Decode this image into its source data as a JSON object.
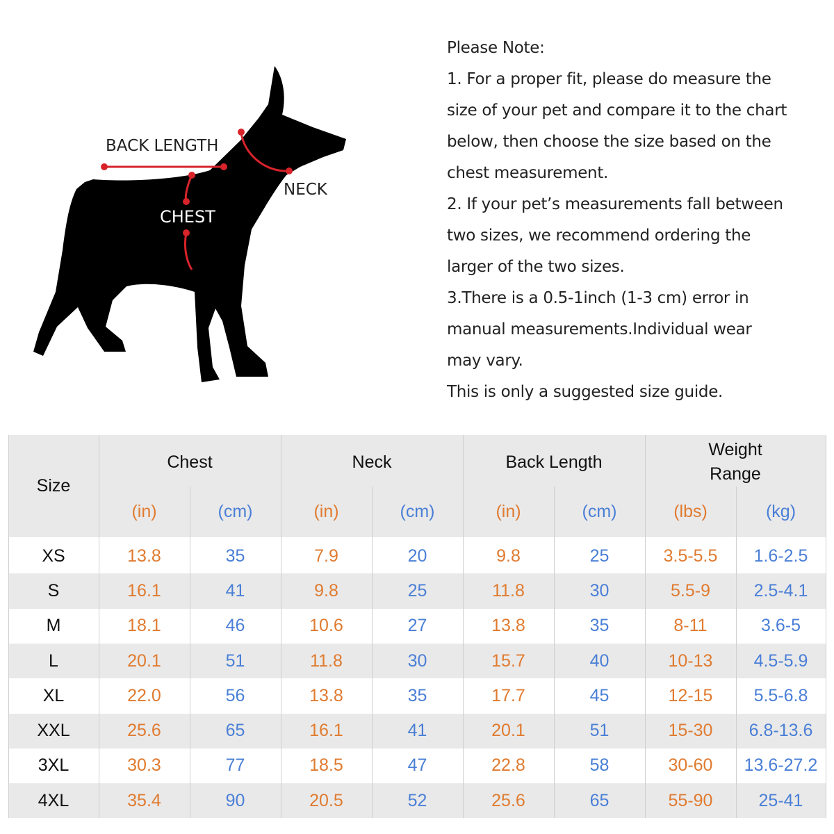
{
  "diagram": {
    "labels": {
      "back_length": "BACK LENGTH",
      "neck": "NECK",
      "chest": "CHEST"
    }
  },
  "note": {
    "title": "Please Note:",
    "lines": [
      "1. For a proper fit, please do measure the",
      "size of your pet and compare it to the chart",
      "below, then choose the size based on the",
      "chest measurement.",
      "2. If your pet’s measurements fall between",
      "two sizes, we recommend ordering the",
      "larger of the two sizes.",
      "3.There is a 0.5-1inch (1-3 cm) error in",
      "manual measurements.Individual wear",
      "may vary.",
      "This is only a suggested size guide."
    ]
  },
  "table": {
    "size_header": "Size",
    "groups": [
      "Chest",
      "Neck",
      "Back Length",
      "Weight Range"
    ],
    "units": [
      "(in)",
      "(cm)",
      "(in)",
      "(cm)",
      "(in)",
      "(cm)",
      "(lbs)",
      "(kg)"
    ],
    "rows": [
      [
        "XS",
        "13.8",
        "35",
        "7.9",
        "20",
        "9.8",
        "25",
        "3.5-5.5",
        "1.6-2.5"
      ],
      [
        "S",
        "16.1",
        "41",
        "9.8",
        "25",
        "11.8",
        "30",
        "5.5-9",
        "2.5-4.1"
      ],
      [
        "M",
        "18.1",
        "46",
        "10.6",
        "27",
        "13.8",
        "35",
        "8-11",
        "3.6-5"
      ],
      [
        "L",
        "20.1",
        "51",
        "11.8",
        "30",
        "15.7",
        "40",
        "10-13",
        "4.5-5.9"
      ],
      [
        "XL",
        "22.0",
        "56",
        "13.8",
        "35",
        "17.7",
        "45",
        "12-15",
        "5.5-6.8"
      ],
      [
        "XXL",
        "25.6",
        "65",
        "16.1",
        "41",
        "20.1",
        "51",
        "15-30",
        "6.8-13.6"
      ],
      [
        "3XL",
        "30.3",
        "77",
        "18.5",
        "47",
        "22.8",
        "58",
        "30-60",
        "13.6-27.2"
      ],
      [
        "4XL",
        "35.4",
        "90",
        "20.5",
        "52",
        "25.6",
        "65",
        "55-90",
        "25-41"
      ]
    ]
  }
}
